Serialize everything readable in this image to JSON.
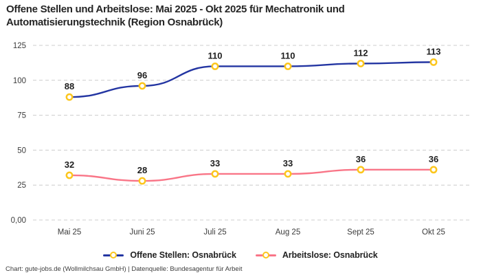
{
  "header": {
    "title_line1": "Offene Stellen und Arbeitslose: Mai 2025 - Okt 2025 für Mechatronik und",
    "title_line2": "Automatisierungstechnik (Region Osnabrück)"
  },
  "chart_data": {
    "type": "line",
    "title": "Offene Stellen und Arbeitslose: Mai 2025 - Okt 2025 für Mechatronik und Automatisierungstechnik (Region Osnabrück)",
    "categories": [
      "Mai 25",
      "Juni 25",
      "Juli 25",
      "Aug 25",
      "Sept 25",
      "Okt 25"
    ],
    "series": [
      {
        "name": "Offene Stellen: Osnabrück",
        "color": "#2335a2",
        "values": [
          88,
          96,
          110,
          110,
          112,
          113
        ]
      },
      {
        "name": "Arbeitslose: Osnabrück",
        "color": "#f97587",
        "values": [
          32,
          28,
          33,
          33,
          36,
          36
        ]
      }
    ],
    "marker_color": "#fcc61d",
    "marker_fill": "#ffffff",
    "y_ticks": [
      {
        "value": 125,
        "label": "125"
      },
      {
        "value": 100,
        "label": "100"
      },
      {
        "value": 75,
        "label": "75"
      },
      {
        "value": 50,
        "label": "50"
      },
      {
        "value": 25,
        "label": "25"
      },
      {
        "value": 0,
        "label": "0,00"
      }
    ],
    "ylim": [
      0,
      125
    ],
    "grid": "horizontal-dashed",
    "grid_color": "#cccccc",
    "tick_color": "#3b3b3b",
    "point_label_color": "#1e1e1e",
    "legend_position": "bottom"
  },
  "footer": {
    "credit": "Chart: gute-jobs.de (Wollmilchsau GmbH) | Datenquelle: Bundesagentur für Arbeit"
  }
}
